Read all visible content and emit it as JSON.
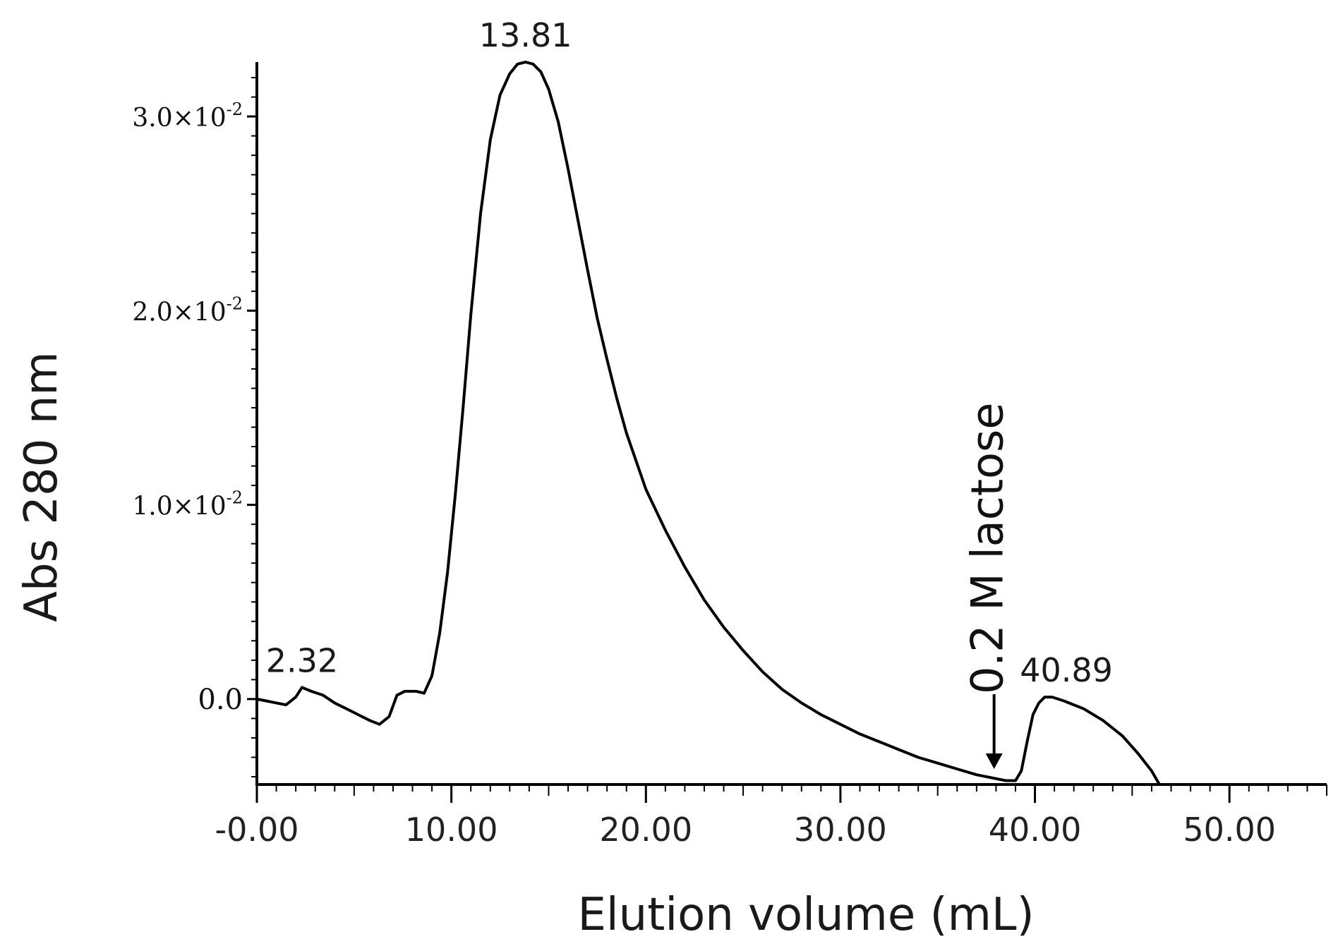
{
  "chart_data": {
    "type": "line",
    "title": "",
    "xlabel": "Elution volume (mL)",
    "ylabel": "Abs 280 nm",
    "xlim": [
      0,
      55
    ],
    "ylim": [
      -0.0044,
      0.0328
    ],
    "x_ticks": [
      {
        "value": 0,
        "label": "-0.00"
      },
      {
        "value": 10,
        "label": "10.00"
      },
      {
        "value": 20,
        "label": "20.00"
      },
      {
        "value": 30,
        "label": "30.00"
      },
      {
        "value": 40,
        "label": "40.00"
      },
      {
        "value": 50,
        "label": "50.00"
      }
    ],
    "y_ticks": [
      {
        "value": 0,
        "mantissa": "0.0",
        "exponent": ""
      },
      {
        "value": 0.01,
        "mantissa": "1.0×10",
        "exponent": "-2"
      },
      {
        "value": 0.02,
        "mantissa": "2.0×10",
        "exponent": "-2"
      },
      {
        "value": 0.03,
        "mantissa": "3.0×10",
        "exponent": "-2"
      }
    ],
    "series": [
      {
        "x": [
          0,
          0.5,
          1,
          1.5,
          2,
          2.32,
          2.8,
          3.4,
          4,
          4.6,
          5.2,
          5.8,
          6.3,
          6.8,
          7.2,
          7.6,
          8.2,
          8.6,
          9,
          9.4,
          9.8,
          10.2,
          10.6,
          11,
          11.5,
          12,
          12.5,
          13,
          13.4,
          13.81,
          14.2,
          14.6,
          15,
          15.5,
          16,
          16.5,
          17,
          17.5,
          18,
          18.5,
          19,
          20,
          21,
          22,
          23,
          24,
          25,
          26,
          27,
          28,
          29,
          30,
          31,
          32,
          33,
          34,
          35,
          36,
          37,
          38,
          38.5,
          39,
          39.3,
          39.6,
          39.9,
          40.2,
          40.5,
          40.89,
          41.5,
          42.5,
          43.5,
          44.5,
          45.3,
          46,
          46.4,
          47,
          48,
          49,
          50
        ],
        "y": [
          0,
          -0.0001,
          -0.0002,
          -0.0003,
          0.0001,
          0.0006,
          0.0004,
          0.0002,
          -0.0002,
          -0.0005,
          -0.0008,
          -0.0011,
          -0.0013,
          -0.0009,
          0.0002,
          0.0004,
          0.0004,
          0.0003,
          0.0012,
          0.0034,
          0.0065,
          0.0105,
          0.015,
          0.0198,
          0.025,
          0.0288,
          0.0311,
          0.0322,
          0.0327,
          0.0328,
          0.0327,
          0.0323,
          0.0314,
          0.0297,
          0.0273,
          0.0247,
          0.0221,
          0.0196,
          0.0175,
          0.0155,
          0.0137,
          0.0108,
          0.0087,
          0.0068,
          0.0051,
          0.0037,
          0.0025,
          0.0014,
          0.0005,
          -0.0002,
          -0.0008,
          -0.0013,
          -0.0018,
          -0.0022,
          -0.0026,
          -0.003,
          -0.0033,
          -0.0036,
          -0.0039,
          -0.0041,
          -0.0042,
          -0.0042,
          -0.0037,
          -0.0022,
          -0.0008,
          -0.0002,
          0.0001,
          0.0001,
          -0.0001,
          -0.0005,
          -0.0011,
          -0.0019,
          -0.0028,
          -0.0037,
          -0.0044,
          -0.0044,
          -0.0044,
          -0.0044,
          -0.0044
        ]
      }
    ],
    "peak_labels": [
      {
        "x": 2.32,
        "label": "2.32"
      },
      {
        "x": 13.81,
        "label": "13.81"
      },
      {
        "x": 40.89,
        "label": "40.89"
      }
    ],
    "annotations": [
      {
        "type": "arrow",
        "x": 37.9,
        "text": "0.2 M lactose"
      }
    ],
    "grid": false,
    "legend": "none"
  }
}
